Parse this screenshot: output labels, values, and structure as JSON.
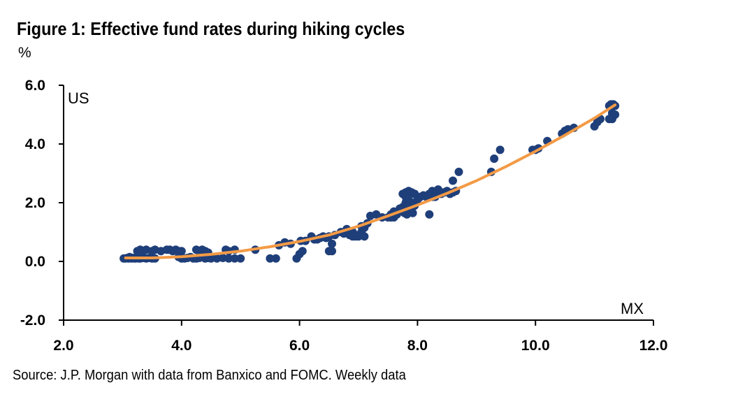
{
  "title": "Figure 1: Effective fund rates during hiking cycles",
  "unit": "%",
  "source": "Source: J.P. Morgan with data from Banxico and FOMC. Weekly data",
  "chart_data": {
    "type": "scatter",
    "title": "Figure 1: Effective fund rates during hiking cycles",
    "xlabel": "MX",
    "ylabel": "US",
    "xlim": [
      2.0,
      12.0
    ],
    "ylim": [
      -2.0,
      6.0
    ],
    "x_ticks": [
      "2.0",
      "4.0",
      "6.0",
      "8.0",
      "10.0",
      "12.0"
    ],
    "y_ticks": [
      "-2.0",
      "0.0",
      "2.0",
      "4.0",
      "6.0"
    ],
    "grid": false,
    "colors": {
      "points": "#1F3F7A",
      "trend": "#F39A45"
    },
    "series": [
      {
        "type": "scatter",
        "x": [
          3.02,
          3.05,
          3.08,
          3.1,
          3.12,
          3.15,
          3.18,
          3.2,
          3.22,
          3.25,
          3.28,
          3.3,
          3.35,
          3.4,
          3.45,
          3.5,
          3.55,
          3.25,
          3.3,
          3.35,
          3.4,
          3.5,
          3.55,
          3.65,
          3.75,
          3.8,
          3.85,
          3.9,
          3.95,
          4.0,
          3.95,
          4.0,
          4.05,
          4.1,
          4.15,
          4.2,
          4.25,
          4.3,
          4.35,
          4.4,
          4.45,
          4.5,
          4.6,
          4.7,
          4.8,
          4.9,
          5.0,
          4.25,
          4.3,
          4.35,
          4.4,
          4.45,
          4.75,
          4.8,
          4.9,
          5.25,
          5.5,
          5.6,
          5.65,
          5.75,
          5.85,
          5.95,
          6.0,
          6.02,
          6.05,
          6.1,
          6.2,
          6.25,
          6.3,
          6.35,
          6.4,
          6.45,
          6.5,
          6.55,
          6.6,
          6.5,
          6.55,
          6.7,
          6.75,
          6.8,
          6.85,
          6.9,
          6.95,
          7.0,
          7.05,
          7.1,
          7.15,
          7.2,
          7.3,
          7.4,
          6.9,
          6.95,
          7.05,
          7.1,
          7.5,
          7.55,
          7.6,
          7.65,
          7.7,
          7.75,
          7.8,
          7.85,
          7.9,
          7.95,
          8.0,
          7.55,
          7.6,
          7.75,
          7.8,
          7.85,
          7.9,
          7.95,
          7.78,
          7.82,
          7.88,
          7.92,
          7.8,
          7.85,
          7.9,
          7.95,
          8.0,
          8.05,
          8.1,
          8.15,
          8.2,
          8.25,
          8.3,
          8.35,
          8.4,
          8.45,
          8.5,
          8.55,
          8.6,
          8.65,
          8.2,
          8.25,
          8.3,
          8.4,
          8.6,
          8.7,
          9.25,
          9.3,
          9.4,
          9.95,
          10.0,
          10.05,
          10.2,
          10.45,
          10.5,
          10.55,
          10.65,
          11.0,
          11.05,
          11.1,
          11.25,
          11.28,
          11.3,
          11.32,
          11.35,
          11.3,
          11.35,
          11.25,
          11.3
        ],
        "y": [
          0.1,
          0.1,
          0.12,
          0.1,
          0.15,
          0.1,
          0.12,
          0.1,
          0.1,
          0.12,
          0.1,
          0.1,
          0.12,
          0.1,
          0.12,
          0.1,
          0.1,
          0.35,
          0.4,
          0.35,
          0.4,
          0.35,
          0.4,
          0.35,
          0.4,
          0.4,
          0.35,
          0.4,
          0.35,
          0.35,
          0.15,
          0.1,
          0.1,
          0.12,
          0.15,
          0.1,
          0.1,
          0.12,
          0.15,
          0.1,
          0.12,
          0.1,
          0.1,
          0.12,
          0.1,
          0.1,
          0.1,
          0.4,
          0.35,
          0.4,
          0.35,
          0.3,
          0.4,
          0.35,
          0.4,
          0.4,
          0.1,
          0.1,
          0.55,
          0.65,
          0.6,
          0.1,
          0.25,
          0.7,
          0.35,
          0.7,
          0.85,
          0.75,
          0.75,
          0.8,
          0.85,
          0.8,
          0.85,
          0.6,
          0.9,
          0.35,
          0.35,
          1.0,
          0.95,
          1.1,
          0.9,
          1.0,
          0.9,
          0.85,
          1.2,
          1.15,
          1.3,
          1.55,
          1.6,
          1.5,
          0.85,
          0.85,
          1.0,
          0.85,
          1.5,
          1.6,
          1.7,
          1.6,
          1.8,
          1.85,
          2.0,
          1.9,
          2.0,
          1.9,
          2.2,
          1.5,
          1.5,
          2.3,
          2.2,
          2.1,
          2.0,
          2.3,
          1.65,
          1.6,
          1.7,
          1.65,
          2.35,
          2.4,
          2.35,
          2.3,
          2.1,
          2.2,
          2.25,
          2.2,
          2.3,
          2.4,
          2.35,
          2.45,
          2.3,
          2.35,
          2.4,
          2.3,
          2.35,
          2.4,
          1.6,
          2.2,
          2.2,
          2.35,
          2.75,
          3.05,
          3.05,
          3.5,
          3.8,
          3.8,
          3.8,
          3.85,
          4.1,
          4.35,
          4.45,
          4.5,
          4.55,
          4.6,
          4.75,
          4.85,
          5.3,
          5.35,
          5.25,
          5.35,
          5.3,
          5.05,
          5.0,
          4.85,
          4.85
        ]
      },
      {
        "type": "line",
        "x": [
          3.05,
          3.5,
          4.0,
          4.5,
          5.0,
          5.5,
          6.0,
          6.5,
          7.0,
          7.5,
          8.0,
          8.5,
          9.0,
          9.5,
          10.0,
          10.5,
          11.0,
          11.35
        ],
        "y": [
          0.12,
          0.12,
          0.16,
          0.24,
          0.35,
          0.5,
          0.68,
          0.9,
          1.2,
          1.55,
          1.92,
          2.32,
          2.75,
          3.23,
          3.75,
          4.3,
          4.88,
          5.33
        ]
      }
    ]
  }
}
